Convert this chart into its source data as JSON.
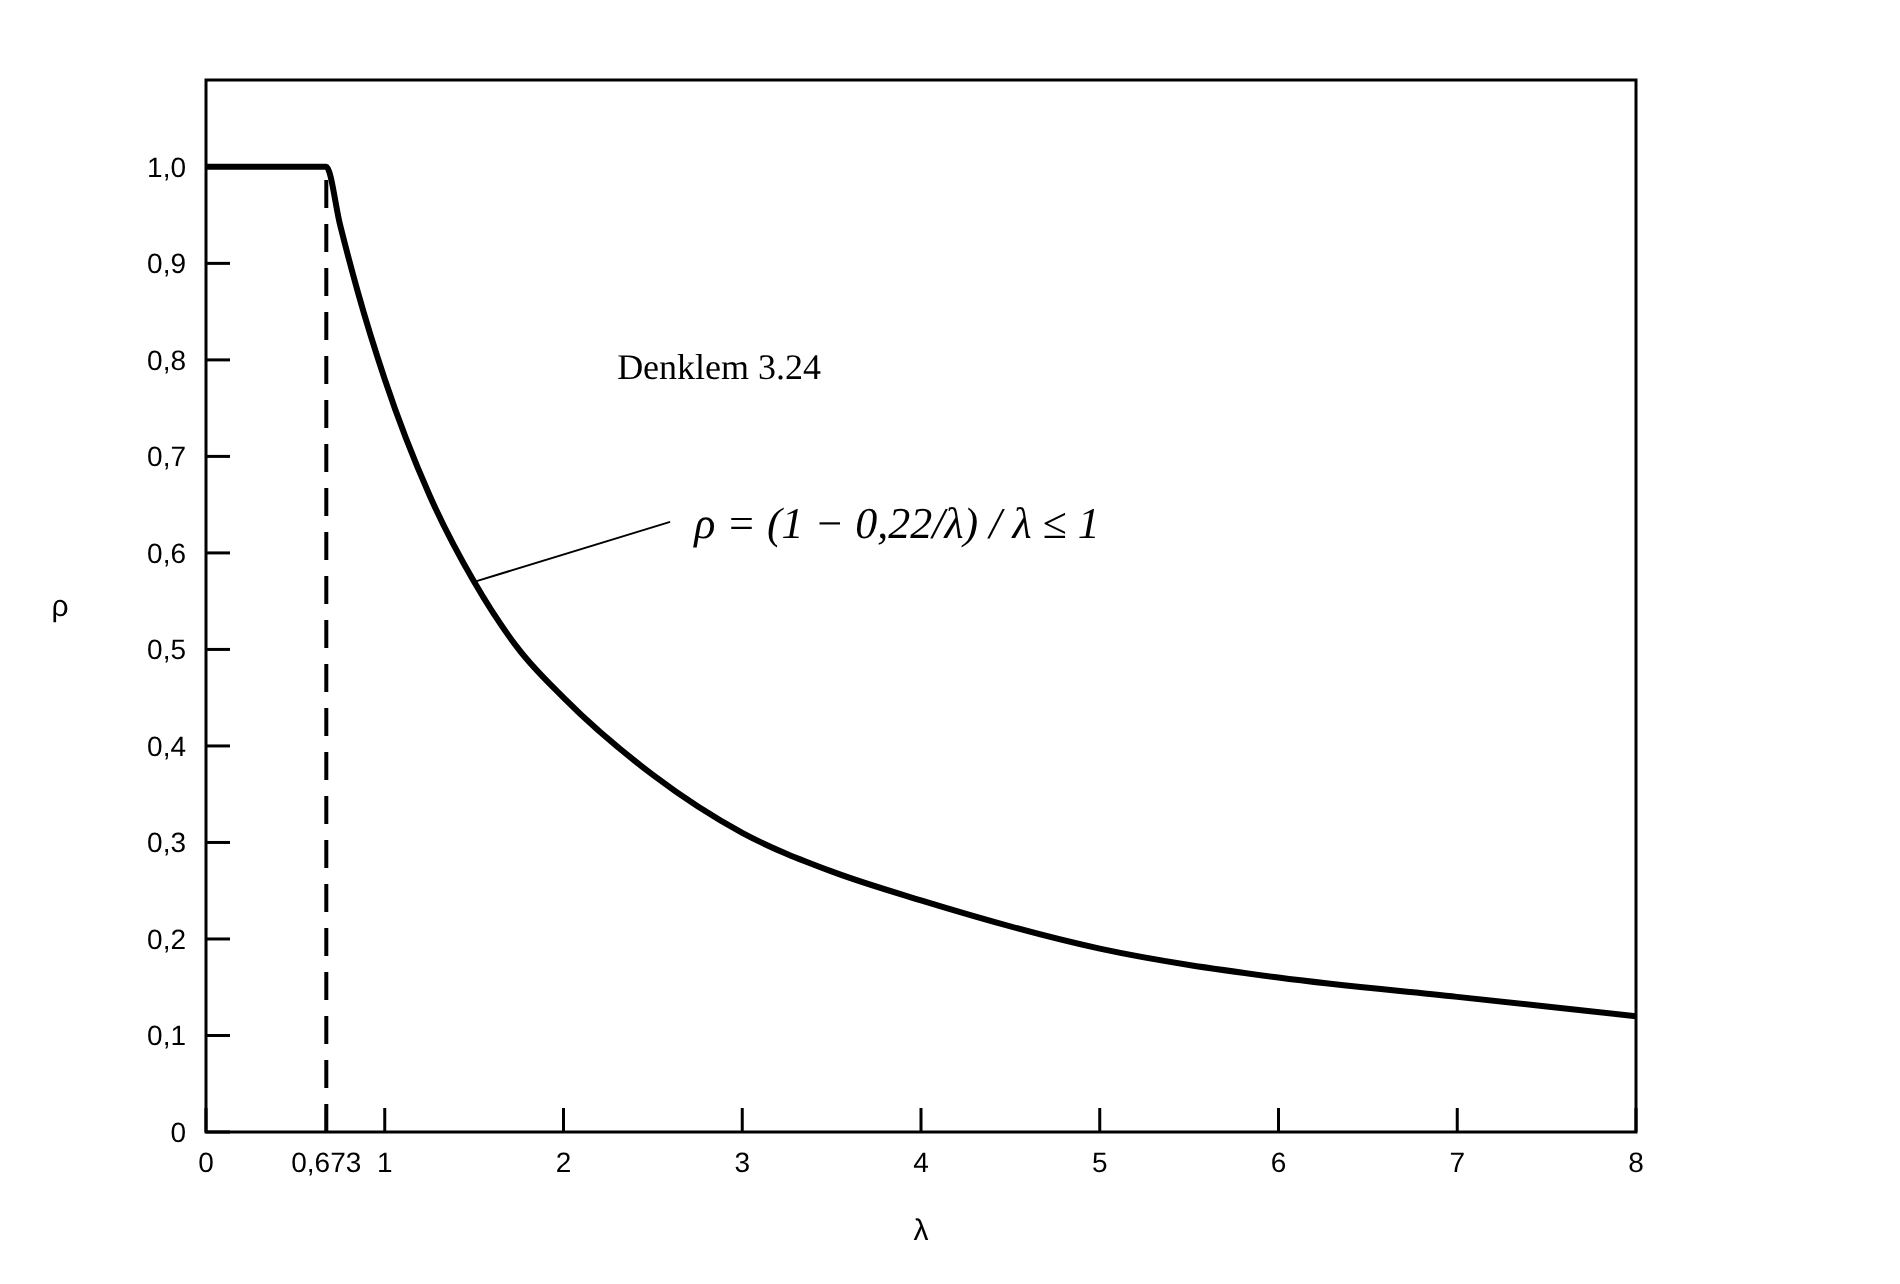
{
  "chart_data": {
    "type": "line",
    "xlabel": "λ",
    "ylabel": "ρ",
    "x": [
      0,
      0.673,
      0.75,
      0.85,
      1,
      1.25,
      1.5,
      1.75,
      2,
      2.5,
      3,
      3.5,
      4,
      5,
      6,
      7,
      8
    ],
    "series": [
      {
        "color": "#000000",
        "values": [
          1,
          1,
          0.94,
          0.87,
          0.78,
          0.66,
          0.57,
          0.5,
          0.45,
          0.37,
          0.31,
          0.27,
          0.24,
          0.19,
          0.16,
          0.14,
          0.12
        ]
      }
    ],
    "xlim": [
      0,
      8
    ],
    "xticks": [
      0,
      {
        "value": 0.673,
        "label": "0,673"
      },
      1,
      2,
      3,
      4,
      5,
      6,
      7,
      8
    ],
    "ylim": [
      0,
      1.09
    ],
    "yticks": [
      0,
      {
        "value": 0.1,
        "label": "0,1"
      },
      {
        "value": 0.2,
        "label": "0,2"
      },
      {
        "value": 0.3,
        "label": "0,3"
      },
      {
        "value": 0.4,
        "label": "0,4"
      },
      {
        "value": 0.5,
        "label": "0,5"
      },
      {
        "value": 0.6,
        "label": "0,6"
      },
      {
        "value": 0.7,
        "label": "0,7"
      },
      {
        "value": 0.8,
        "label": "0,8"
      },
      {
        "value": 0.9,
        "label": "0,9"
      },
      {
        "value": 1,
        "label": "1,0"
      }
    ],
    "ref_lines": [
      {
        "axis": "x",
        "value": 0.673,
        "line_style": "dashed",
        "color": "#000000"
      }
    ],
    "annotations": [
      "Denklem 3.24",
      {
        "text": "ρ = (1 − 0,22/λ) / λ ≤ 1",
        "x": 1.5,
        "y": 0.57
      }
    ],
    "grid": false,
    "marker": "none",
    "line_style": "solid"
  }
}
